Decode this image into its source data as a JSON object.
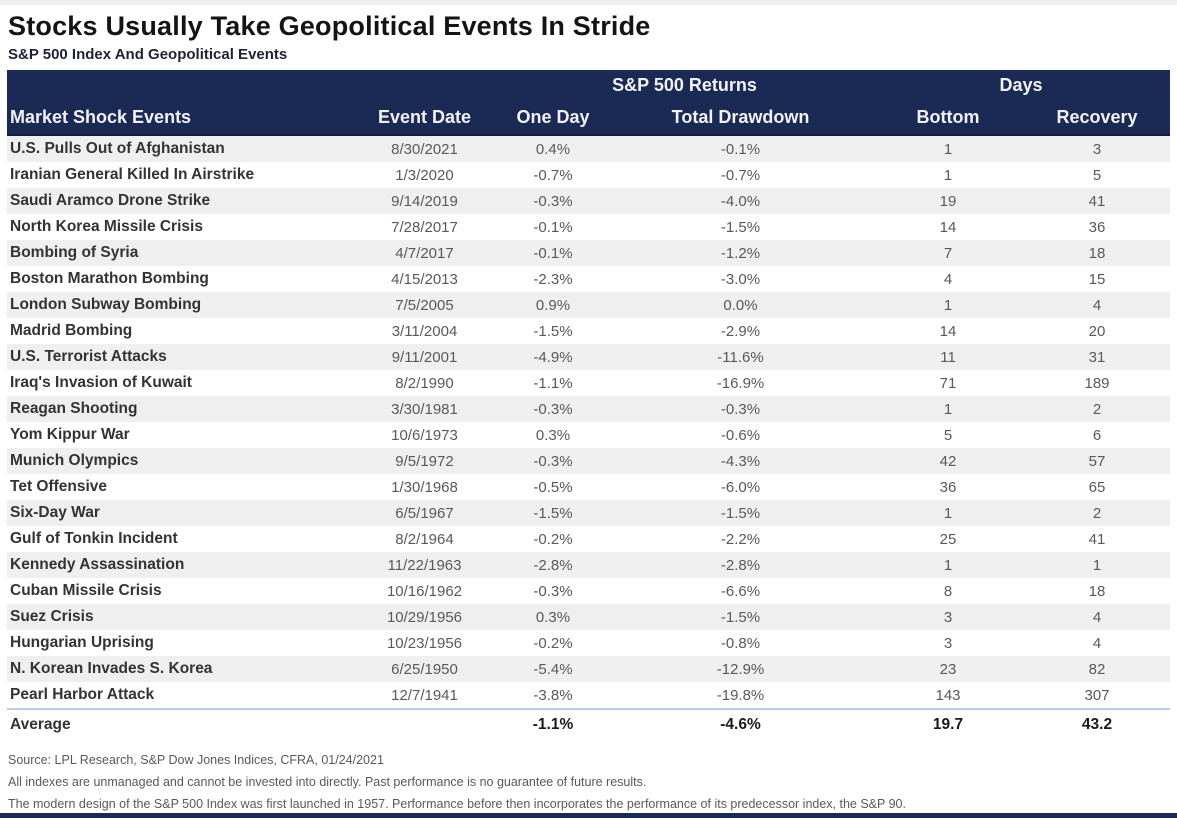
{
  "header": {
    "title": "Stocks Usually Take Geopolitical Events In Stride",
    "subtitle": "S&P 500 Index And Geopolitical Events"
  },
  "colors": {
    "header_navy": "#1b2a55",
    "stripe_gray": "#efefef",
    "separator_blue": "#b9cfe8",
    "value_text": "#595959"
  },
  "footnotes": [
    "Source: LPL Research, S&P Dow Jones Indices, CFRA, 01/24/2021",
    "All indexes are unmanaged and cannot be invested into directly.  Past performance is no guarantee of future results.",
    "The modern design of the S&P 500 Index was first launched in 1957. Performance before then incorporates the performance of its predecessor index, the S&P 90."
  ],
  "chart_data": {
    "type": "table",
    "title": "Stocks Usually Take Geopolitical Events In Stride",
    "subtitle": "S&P 500 Index And Geopolitical Events",
    "column_groups": [
      {
        "label": "",
        "span": 2
      },
      {
        "label": "S&P 500 Returns",
        "span": 2
      },
      {
        "label": "Days",
        "span": 2
      }
    ],
    "columns": [
      "Market Shock Events",
      "Event Date",
      "One Day",
      "Total Drawdown",
      "Bottom",
      "Recovery"
    ],
    "rows": [
      [
        "U.S. Pulls Out of Afghanistan",
        "8/30/2021",
        "0.4%",
        "-0.1%",
        "1",
        "3"
      ],
      [
        "Iranian General Killed In Airstrike",
        "1/3/2020",
        "-0.7%",
        "-0.7%",
        "1",
        "5"
      ],
      [
        "Saudi Aramco Drone Strike",
        "9/14/2019",
        "-0.3%",
        "-4.0%",
        "19",
        "41"
      ],
      [
        "North Korea Missile Crisis",
        "7/28/2017",
        "-0.1%",
        "-1.5%",
        "14",
        "36"
      ],
      [
        "Bombing of Syria",
        "4/7/2017",
        "-0.1%",
        "-1.2%",
        "7",
        "18"
      ],
      [
        "Boston Marathon Bombing",
        "4/15/2013",
        "-2.3%",
        "-3.0%",
        "4",
        "15"
      ],
      [
        "London Subway Bombing",
        "7/5/2005",
        "0.9%",
        "0.0%",
        "1",
        "4"
      ],
      [
        "Madrid Bombing",
        "3/11/2004",
        "-1.5%",
        "-2.9%",
        "14",
        "20"
      ],
      [
        "U.S. Terrorist Attacks",
        "9/11/2001",
        "-4.9%",
        "-11.6%",
        "11",
        "31"
      ],
      [
        "Iraq's Invasion of Kuwait",
        "8/2/1990",
        "-1.1%",
        "-16.9%",
        "71",
        "189"
      ],
      [
        "Reagan Shooting",
        "3/30/1981",
        "-0.3%",
        "-0.3%",
        "1",
        "2"
      ],
      [
        "Yom Kippur War",
        "10/6/1973",
        "0.3%",
        "-0.6%",
        "5",
        "6"
      ],
      [
        "Munich Olympics",
        "9/5/1972",
        "-0.3%",
        "-4.3%",
        "42",
        "57"
      ],
      [
        "Tet Offensive",
        "1/30/1968",
        "-0.5%",
        "-6.0%",
        "36",
        "65"
      ],
      [
        "Six-Day War",
        "6/5/1967",
        "-1.5%",
        "-1.5%",
        "1",
        "2"
      ],
      [
        "Gulf of Tonkin Incident",
        "8/2/1964",
        "-0.2%",
        "-2.2%",
        "25",
        "41"
      ],
      [
        "Kennedy Assassination",
        "11/22/1963",
        "-2.8%",
        "-2.8%",
        "1",
        "1"
      ],
      [
        "Cuban Missile Crisis",
        "10/16/1962",
        "-0.3%",
        "-6.6%",
        "8",
        "18"
      ],
      [
        "Suez Crisis",
        "10/29/1956",
        "0.3%",
        "-1.5%",
        "3",
        "4"
      ],
      [
        "Hungarian Uprising",
        "10/23/1956",
        "-0.2%",
        "-0.8%",
        "3",
        "4"
      ],
      [
        "N. Korean Invades S. Korea",
        "6/25/1950",
        "-5.4%",
        "-12.9%",
        "23",
        "82"
      ],
      [
        "Pearl Harbor Attack",
        "12/7/1941",
        "-3.8%",
        "-19.8%",
        "143",
        "307"
      ]
    ],
    "average_row": [
      "Average",
      "",
      "-1.1%",
      "-4.6%",
      "19.7",
      "43.2"
    ],
    "layout": {
      "striped_rows": "odd",
      "header_background": "#1b2a55",
      "grid": false
    }
  }
}
